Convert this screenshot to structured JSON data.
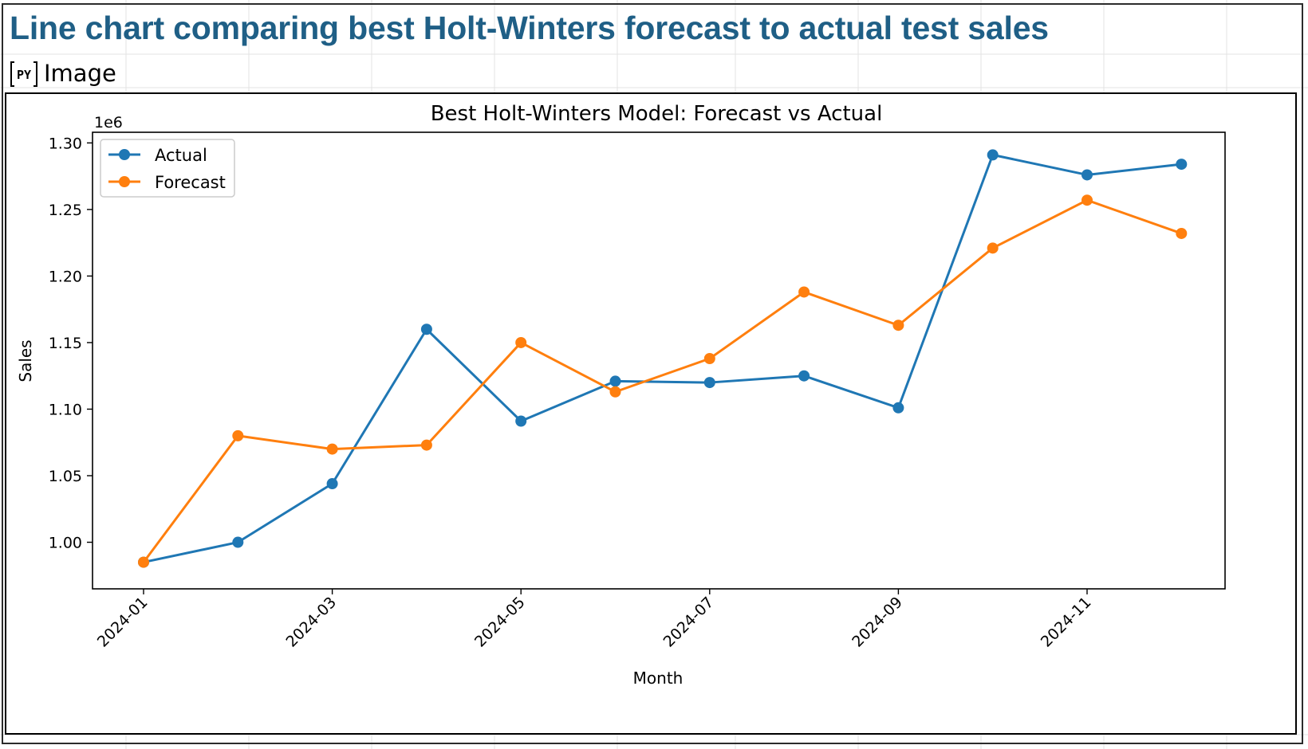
{
  "sheet": {
    "title": "Line chart comparing best Holt-Winters forecast to actual test sales",
    "image_label": "Image",
    "python_badge": "PY",
    "python_icon": "python-cell-icon"
  },
  "colors": {
    "actual": "#1f77b4",
    "forecast": "#ff7f0e",
    "title": "#1f5f86"
  },
  "chart_data": {
    "type": "line",
    "title": "Best Holt-Winters Model: Forecast vs Actual",
    "xlabel": "Month",
    "ylabel": "Sales",
    "y_offset_text": "1e6",
    "x": [
      "2024-01",
      "2024-02",
      "2024-03",
      "2024-04",
      "2024-05",
      "2024-06",
      "2024-07",
      "2024-08",
      "2024-09",
      "2024-10",
      "2024-11",
      "2024-12"
    ],
    "x_tick_labels": [
      "2024-01",
      "2024-03",
      "2024-05",
      "2024-07",
      "2024-09",
      "2024-11"
    ],
    "y_tick_labels": [
      "1.00",
      "1.05",
      "1.10",
      "1.15",
      "1.20",
      "1.25",
      "1.30"
    ],
    "y_ticks": [
      1000000,
      1050000,
      1100000,
      1150000,
      1200000,
      1250000,
      1300000
    ],
    "ylim": [
      965000,
      1308000
    ],
    "grid": false,
    "legend_position": "top-left",
    "series": [
      {
        "name": "Actual",
        "values": [
          985000,
          1000000,
          1044000,
          1160000,
          1091000,
          1121000,
          1120000,
          1125000,
          1101000,
          1291000,
          1276000,
          1284000
        ]
      },
      {
        "name": "Forecast",
        "values": [
          985000,
          1080000,
          1070000,
          1073000,
          1150000,
          1113000,
          1138000,
          1188000,
          1163000,
          1221000,
          1257000,
          1232000
        ]
      }
    ]
  }
}
